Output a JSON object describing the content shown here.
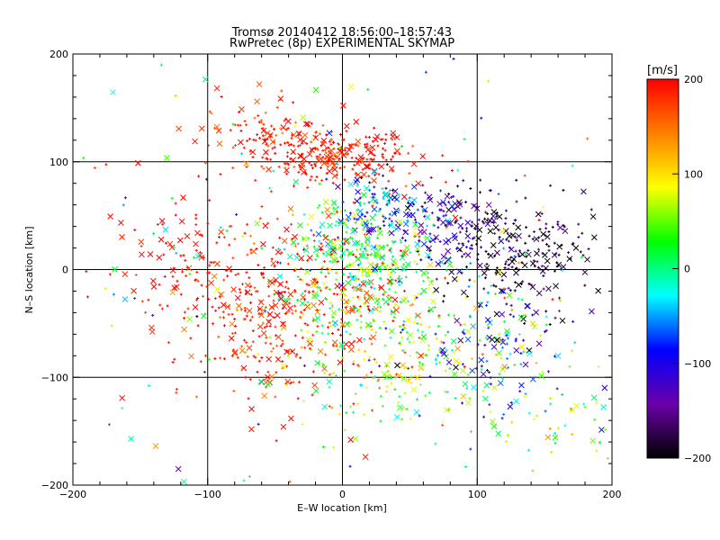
{
  "chart_data": {
    "type": "scatter",
    "title": "Tromsø 20140412 18:56:00–18:57:43",
    "subtitle": "RwPretec (8p) EXPERIMENTAL SKYMAP",
    "xlabel": "E–W location [km]",
    "ylabel": "N–S location [km]",
    "xlim": [
      -200,
      200
    ],
    "ylim": [
      -200,
      200
    ],
    "xticks": [
      -200,
      -100,
      0,
      100,
      200
    ],
    "yticks": [
      -200,
      -100,
      0,
      100,
      200
    ],
    "grid": true,
    "colorbar": {
      "label": "[m/s]",
      "range": [
        -200,
        200
      ],
      "ticks": [
        200,
        100,
        0,
        -100,
        -200
      ],
      "colors": [
        "#000000",
        "#6a00aa",
        "#0000ff",
        "#00ffff",
        "#00ff00",
        "#ffff00",
        "#ff8000",
        "#ff0000"
      ]
    },
    "markers": [
      "+",
      "x"
    ],
    "clusters": [
      {
        "cx": -5,
        "cy": 105,
        "sx": 30,
        "sy": 12,
        "n": 260,
        "vmean": 190,
        "vsd": 20
      },
      {
        "cx": -60,
        "cy": 130,
        "sx": 25,
        "sy": 15,
        "n": 90,
        "vmean": 185,
        "vsd": 25
      },
      {
        "cx": 30,
        "cy": 55,
        "sx": 25,
        "sy": 15,
        "n": 120,
        "vmean": -60,
        "vsd": 40
      },
      {
        "cx": 80,
        "cy": 40,
        "sx": 30,
        "sy": 20,
        "n": 140,
        "vmean": -140,
        "vsd": 40
      },
      {
        "cx": 130,
        "cy": 15,
        "sx": 30,
        "sy": 25,
        "n": 200,
        "vmean": -190,
        "vsd": 20
      },
      {
        "cx": 10,
        "cy": 10,
        "sx": 30,
        "sy": 25,
        "n": 260,
        "vmean": 20,
        "vsd": 40
      },
      {
        "cx": -40,
        "cy": -40,
        "sx": 45,
        "sy": 40,
        "n": 420,
        "vmean": 185,
        "vsd": 25
      },
      {
        "cx": 40,
        "cy": -70,
        "sx": 40,
        "sy": 40,
        "n": 280,
        "vmean": 60,
        "vsd": 50
      },
      {
        "cx": 110,
        "cy": -70,
        "sx": 35,
        "sy": 40,
        "n": 140,
        "vmean": -80,
        "vsd": 60
      },
      {
        "cx": -120,
        "cy": 10,
        "sx": 25,
        "sy": 30,
        "n": 80,
        "vmean": 195,
        "vsd": 10
      },
      {
        "cx": 150,
        "cy": -130,
        "sx": 30,
        "sy": 30,
        "n": 50,
        "vmean": 40,
        "vsd": 60
      },
      {
        "cx": 0,
        "cy": 0,
        "sx": 130,
        "sy": 120,
        "n": 220,
        "vmean": 50,
        "vsd": 110
      }
    ]
  }
}
